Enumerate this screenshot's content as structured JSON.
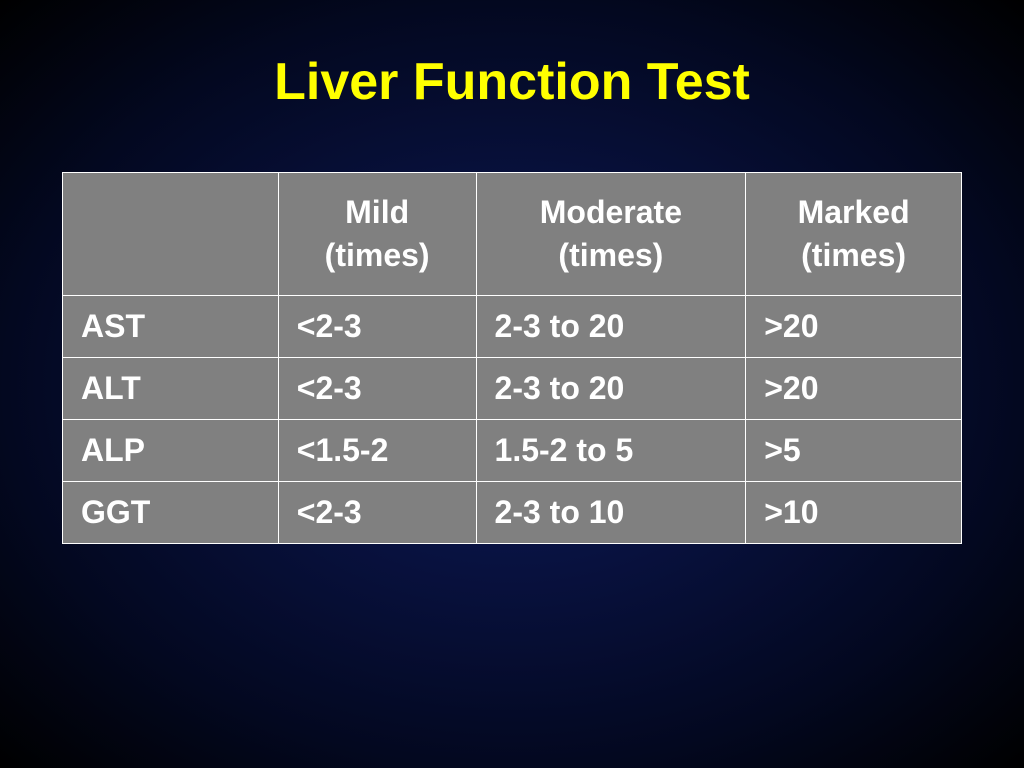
{
  "slide": {
    "title": "Liver Function Test",
    "title_color": "#ffff00",
    "title_fontsize": 52,
    "background_gradient": {
      "center": "#0d1a5c",
      "edge": "#000000"
    }
  },
  "table": {
    "type": "table",
    "background_color": "#808080",
    "border_color": "#ffffff",
    "text_color": "#ffffff",
    "cell_fontsize": 32,
    "cell_fontweight": "bold",
    "column_widths_pct": [
      24,
      22,
      30,
      24
    ],
    "columns": [
      {
        "line1": "",
        "line2": ""
      },
      {
        "line1": "Mild",
        "line2": "(times)"
      },
      {
        "line1": "Moderate",
        "line2": "(times)"
      },
      {
        "line1": "Marked",
        "line2": "(times)"
      }
    ],
    "rows": [
      {
        "label": "AST",
        "mild": "<2-3",
        "moderate": "2-3 to 20",
        "marked": ">20"
      },
      {
        "label": "ALT",
        "mild": "<2-3",
        "moderate": "2-3 to 20",
        "marked": ">20"
      },
      {
        "label": "ALP",
        "mild": "<1.5-2",
        "moderate": "1.5-2 to 5",
        "marked": ">5"
      },
      {
        "label": "GGT",
        "mild": "<2-3",
        "moderate": "2-3 to 10",
        "marked": ">10"
      }
    ]
  }
}
